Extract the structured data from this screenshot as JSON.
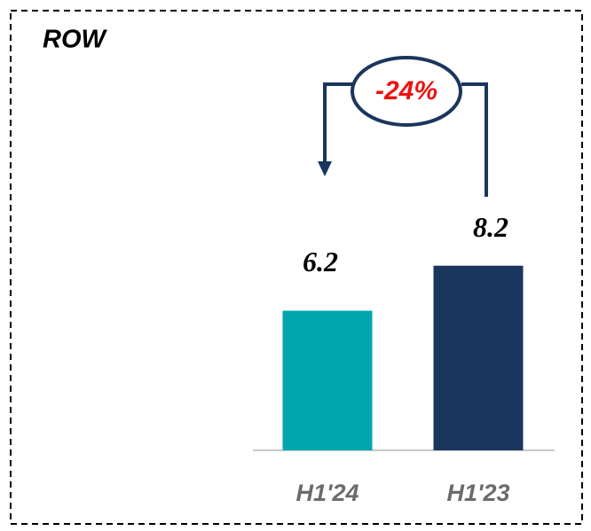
{
  "chart_data": {
    "type": "bar",
    "title": "ROW",
    "categories": [
      "H1'24",
      "H1'23"
    ],
    "values": [
      6.2,
      8.2
    ],
    "colors": [
      "#00a6ae",
      "#1b365d"
    ],
    "annotation": "-24%"
  }
}
